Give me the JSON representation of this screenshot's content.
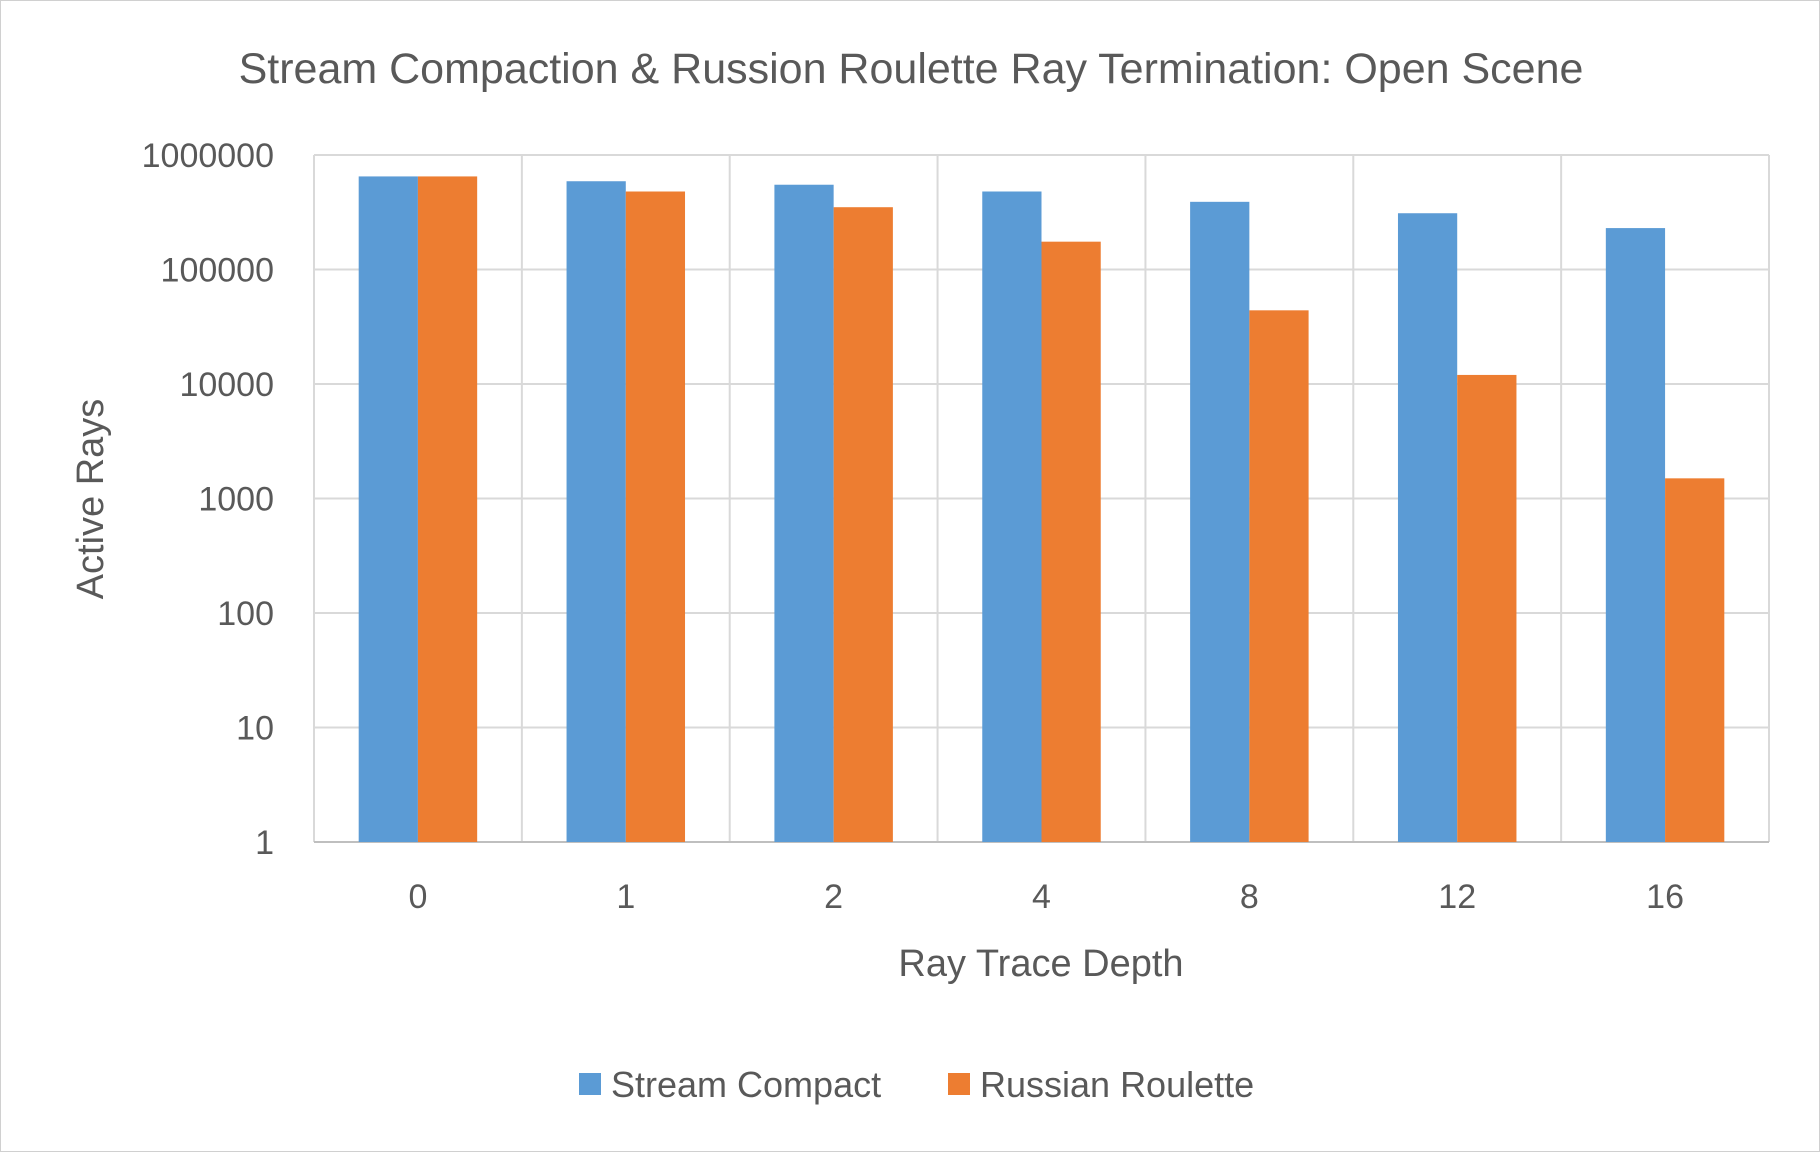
{
  "chart_data": {
    "type": "bar",
    "title": "Stream Compaction & Russion Roulette Ray Termination: Open Scene",
    "xlabel": "Ray Trace Depth",
    "ylabel": "Active Rays",
    "categories": [
      "0",
      "1",
      "2",
      "4",
      "8",
      "12",
      "16"
    ],
    "y_scale": "log",
    "ylim": [
      1,
      1000000
    ],
    "y_ticks": [
      "1",
      "10",
      "100",
      "1000",
      "10000",
      "100000",
      "1000000"
    ],
    "grid": true,
    "legend_position": "bottom",
    "series": [
      {
        "name": "Stream Compact",
        "color": "#5b9bd5",
        "values": [
          650000,
          590000,
          550000,
          480000,
          390000,
          310000,
          230000
        ]
      },
      {
        "name": "Russian Roulette",
        "color": "#ed7d31",
        "values": [
          650000,
          480000,
          350000,
          175000,
          44000,
          12000,
          1500
        ]
      }
    ]
  }
}
